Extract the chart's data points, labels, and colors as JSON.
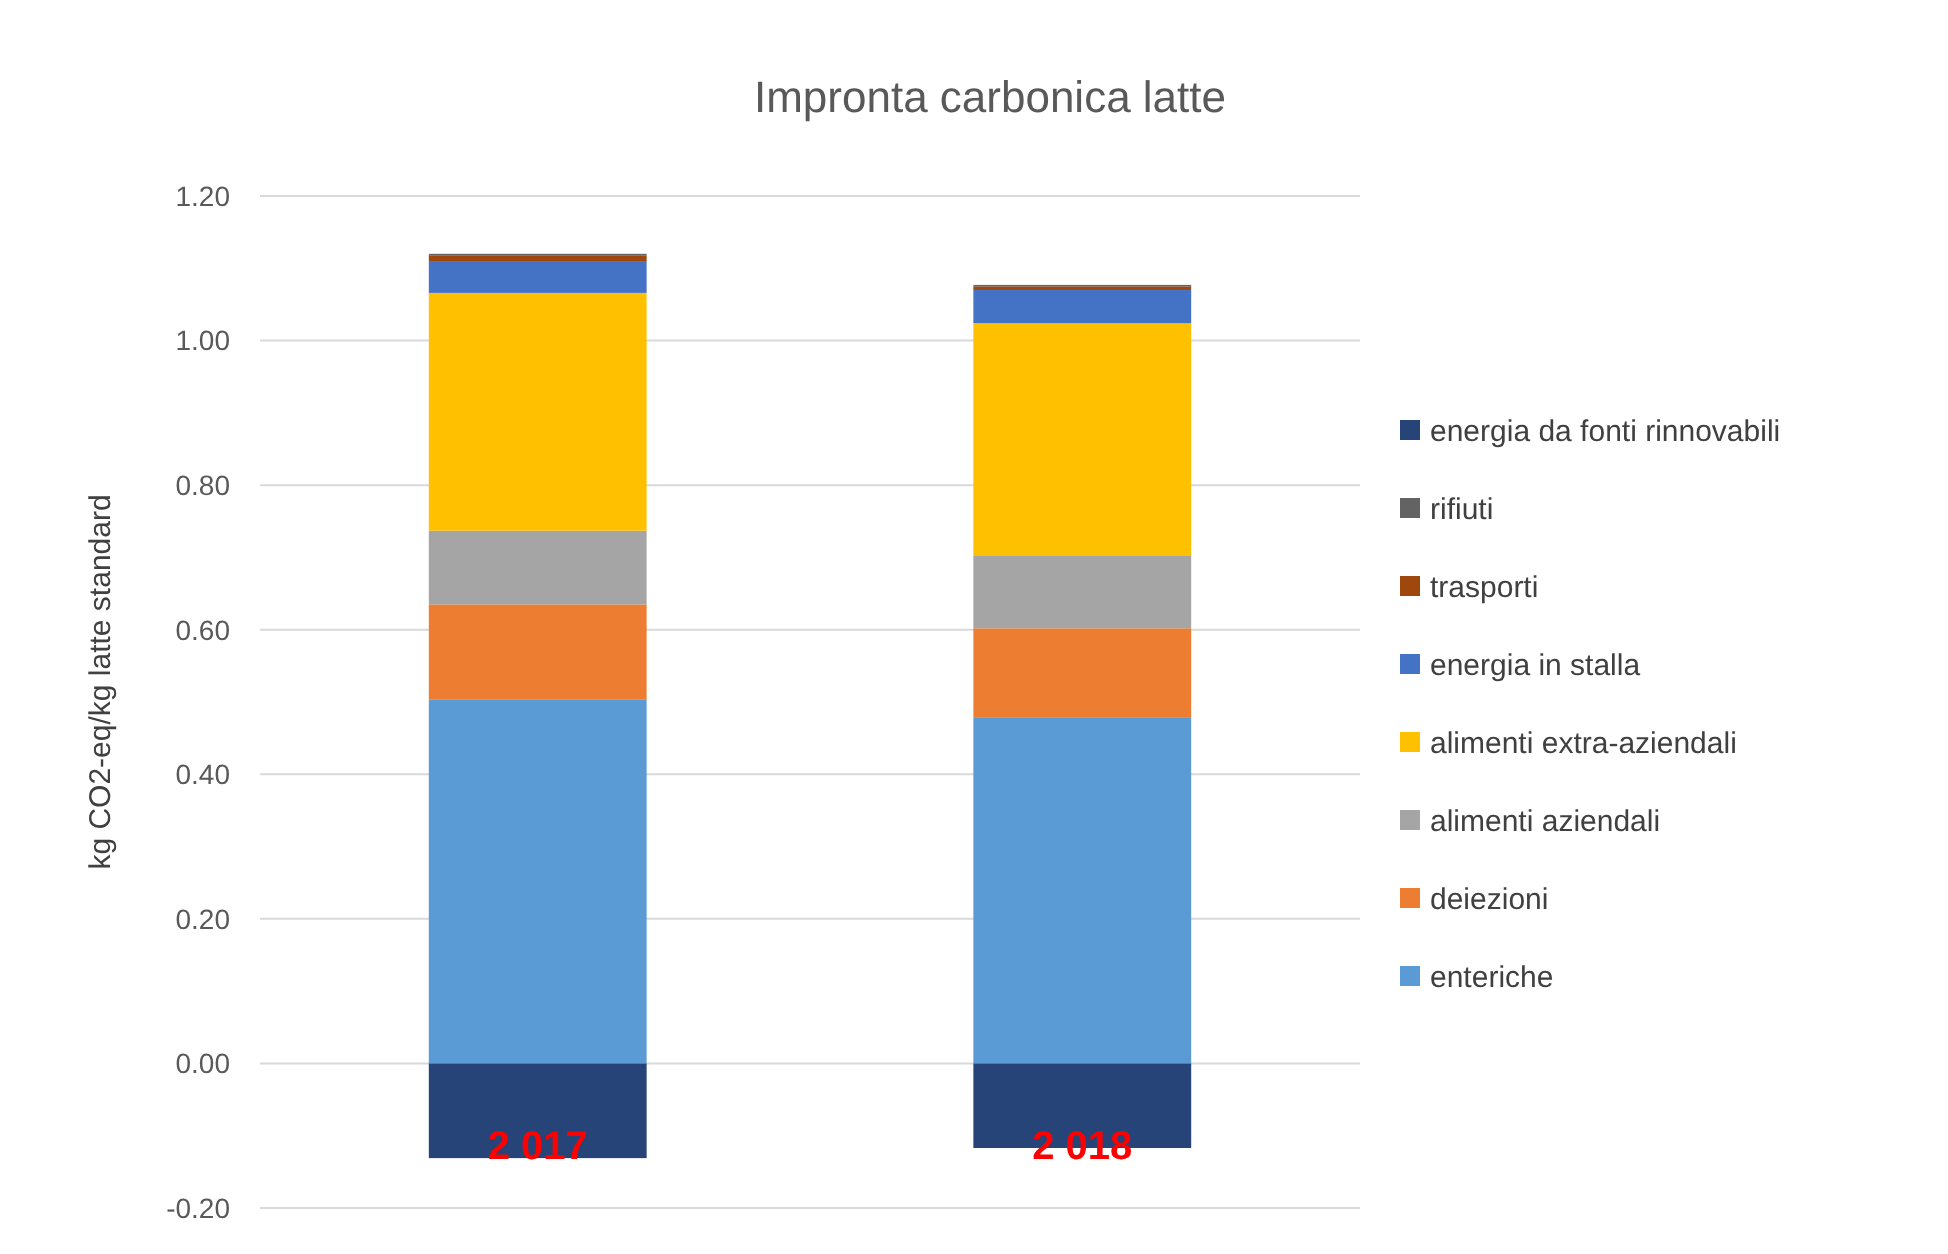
{
  "chart_data": {
    "type": "bar",
    "title": "Impronta carbonica latte",
    "ylabel": "kg CO2-eq/kg latte standard",
    "categories": [
      "2 017",
      "2 018"
    ],
    "stacked": true,
    "series": [
      {
        "name": "enteriche",
        "color": "#5b9bd5",
        "values": [
          0.503,
          0.478
        ]
      },
      {
        "name": "deiezioni",
        "color": "#ed7d31",
        "values": [
          0.132,
          0.124
        ]
      },
      {
        "name": "alimenti aziendali",
        "color": "#a5a5a5",
        "values": [
          0.102,
          0.101
        ]
      },
      {
        "name": "alimenti extra-aziendali",
        "color": "#ffc000",
        "values": [
          0.329,
          0.321
        ]
      },
      {
        "name": "energia in stalla",
        "color": "#4472c4",
        "values": [
          0.044,
          0.046
        ]
      },
      {
        "name": "trasporti",
        "color": "#9e480e",
        "values": [
          0.008,
          0.005
        ]
      },
      {
        "name": "rifiuti",
        "color": "#636363",
        "values": [
          0.002,
          0.002
        ]
      },
      {
        "name": "energia da fonti rinnovabili",
        "color": "#264478",
        "values": [
          -0.131,
          -0.117
        ]
      }
    ],
    "ylim": [
      -0.2,
      1.2
    ],
    "yticks": [
      {
        "value": -0.2,
        "label": "-0.20"
      },
      {
        "value": 0,
        "label": "0.00"
      },
      {
        "value": 0.2,
        "label": "0.20"
      },
      {
        "value": 0.4,
        "label": "0.40"
      },
      {
        "value": 0.6,
        "label": "0.60"
      },
      {
        "value": 0.8,
        "label": "0.80"
      },
      {
        "value": 1,
        "label": "1.00"
      },
      {
        "value": 1.2,
        "label": "1.20"
      }
    ],
    "grid": "y",
    "legend": "right"
  }
}
